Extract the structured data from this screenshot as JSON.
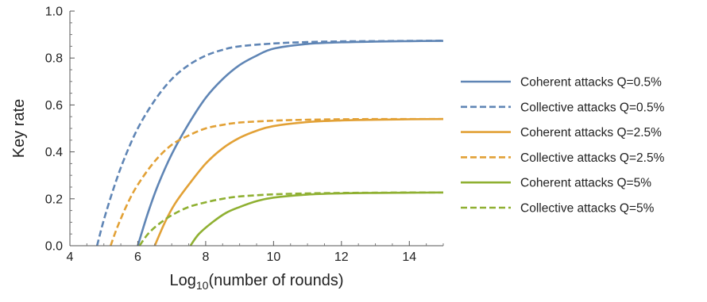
{
  "chart_data": {
    "type": "line",
    "xlabel": {
      "main": "Log",
      "sub": "10",
      "rest": "(number of rounds)"
    },
    "ylabel": "Key rate",
    "xlim": [
      4,
      15
    ],
    "ylim": [
      0,
      1.0
    ],
    "x_ticks": [
      {
        "value": 4,
        "label": "4"
      },
      {
        "value": 6,
        "label": "6"
      },
      {
        "value": 8,
        "label": "8"
      },
      {
        "value": 10,
        "label": "10"
      },
      {
        "value": 12,
        "label": "12"
      },
      {
        "value": 14,
        "label": "14"
      }
    ],
    "y_ticks": [
      {
        "value": 0,
        "label": "0.0"
      },
      {
        "value": 0.2,
        "label": "0.2"
      },
      {
        "value": 0.4,
        "label": "0.4"
      },
      {
        "value": 0.6,
        "label": "0.6"
      },
      {
        "value": 0.8,
        "label": "0.8"
      },
      {
        "value": 1.0,
        "label": "1.0"
      }
    ],
    "grid": false,
    "legend_position": "right",
    "series": [
      {
        "name": "Coherent attacks Q=0.5%",
        "color": "#5f85b5",
        "dash": "solid",
        "x": [
          6.0,
          6.3,
          6.6,
          7.0,
          7.5,
          8.0,
          8.5,
          9.0,
          9.5,
          10.0,
          11.0,
          12.0,
          13.0,
          14.0,
          15.0
        ],
        "y": [
          0.0,
          0.14,
          0.26,
          0.39,
          0.52,
          0.63,
          0.71,
          0.77,
          0.81,
          0.84,
          0.86,
          0.867,
          0.87,
          0.872,
          0.873
        ]
      },
      {
        "name": "Collective attacks Q=0.5%",
        "color": "#5f85b5",
        "dash": "dashed",
        "x": [
          4.8,
          5.0,
          5.3,
          5.6,
          6.0,
          6.5,
          7.0,
          7.5,
          8.0,
          8.5,
          9.0,
          10.0,
          11.0,
          12.0,
          13.0,
          14.0,
          15.0
        ],
        "y": [
          0.0,
          0.11,
          0.25,
          0.37,
          0.5,
          0.62,
          0.71,
          0.77,
          0.81,
          0.835,
          0.85,
          0.862,
          0.868,
          0.871,
          0.872,
          0.873,
          0.874
        ]
      },
      {
        "name": "Coherent attacks Q=2.5%",
        "color": "#e2a136",
        "dash": "solid",
        "x": [
          6.5,
          6.8,
          7.1,
          7.5,
          8.0,
          8.5,
          9.0,
          9.5,
          10.0,
          11.0,
          12.0,
          13.0,
          14.0,
          15.0
        ],
        "y": [
          0.0,
          0.1,
          0.18,
          0.26,
          0.35,
          0.415,
          0.46,
          0.49,
          0.51,
          0.527,
          0.534,
          0.537,
          0.539,
          0.54
        ]
      },
      {
        "name": "Collective attacks Q=2.5%",
        "color": "#e2a136",
        "dash": "dashed",
        "x": [
          5.2,
          5.4,
          5.7,
          6.0,
          6.5,
          7.0,
          7.5,
          8.0,
          8.5,
          9.0,
          10.0,
          11.0,
          12.0,
          13.0,
          14.0,
          15.0
        ],
        "y": [
          0.0,
          0.08,
          0.18,
          0.26,
          0.36,
          0.43,
          0.47,
          0.5,
          0.515,
          0.525,
          0.533,
          0.537,
          0.539,
          0.54,
          0.54,
          0.54
        ]
      },
      {
        "name": "Coherent attacks Q=5%",
        "color": "#8fb032",
        "dash": "solid",
        "x": [
          7.55,
          7.8,
          8.2,
          8.6,
          9.0,
          9.5,
          10.0,
          11.0,
          12.0,
          13.0,
          14.0,
          15.0
        ],
        "y": [
          0.0,
          0.05,
          0.1,
          0.14,
          0.165,
          0.19,
          0.205,
          0.218,
          0.223,
          0.225,
          0.226,
          0.227
        ]
      },
      {
        "name": "Collective attacks Q=5%",
        "color": "#8fb032",
        "dash": "dashed",
        "x": [
          6.05,
          6.3,
          6.6,
          7.0,
          7.5,
          8.0,
          8.5,
          9.0,
          10.0,
          11.0,
          12.0,
          13.0,
          14.0,
          15.0
        ],
        "y": [
          0.0,
          0.05,
          0.09,
          0.13,
          0.165,
          0.185,
          0.2,
          0.21,
          0.219,
          0.223,
          0.225,
          0.226,
          0.227,
          0.227
        ]
      }
    ]
  }
}
